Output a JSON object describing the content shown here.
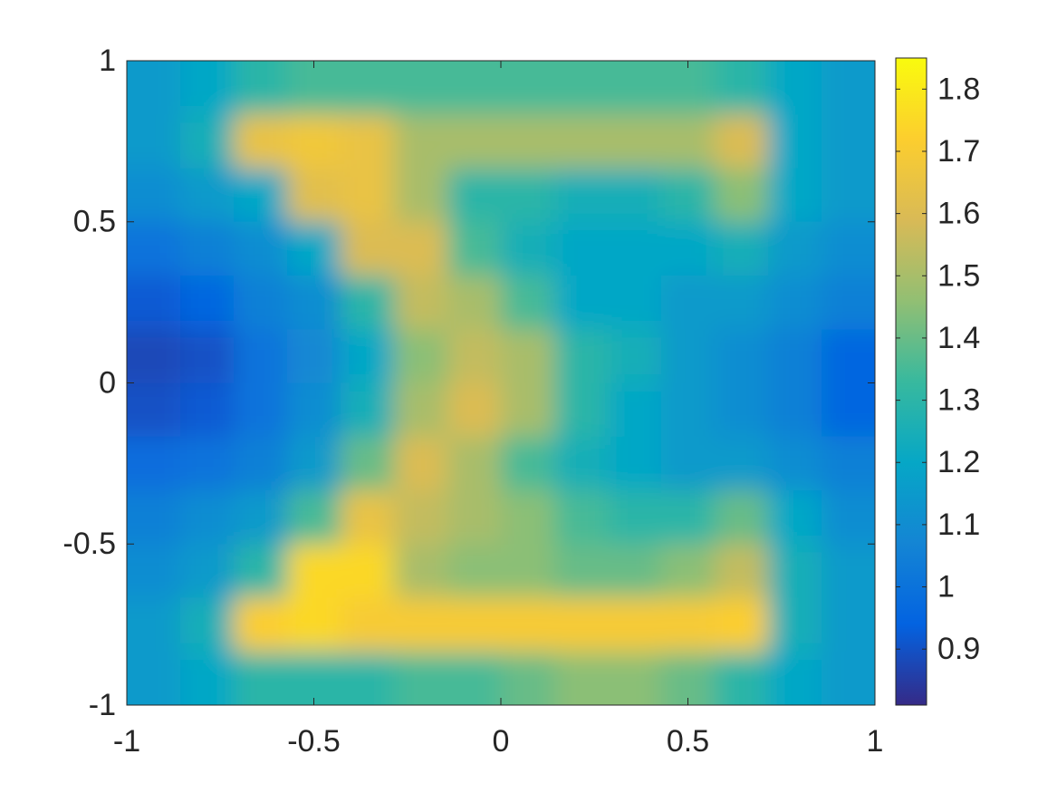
{
  "chart_data": {
    "type": "heatmap",
    "xlim": [
      -1,
      1
    ],
    "ylim": [
      -1,
      1
    ],
    "xticks": [
      -1,
      -0.5,
      0,
      0.5,
      1
    ],
    "yticks": [
      -1,
      -0.5,
      0,
      0.5,
      1
    ],
    "clim": [
      0.81,
      1.85
    ],
    "cticks": [
      0.9,
      1,
      1.1,
      1.2,
      1.3,
      1.4,
      1.5,
      1.6,
      1.7,
      1.8
    ],
    "colormap": [
      "#352a87",
      "#0363e1",
      "#1485d4",
      "#06a7c6",
      "#38b99e",
      "#92bf73",
      "#d9ba56",
      "#fcce2e",
      "#f9fb0e"
    ],
    "z": [
      [
        1.15,
        1.2,
        1.3,
        1.35,
        1.35,
        1.35,
        1.35,
        1.35,
        1.35,
        1.35,
        1.35,
        1.3,
        1.2,
        1.15
      ],
      [
        1.15,
        1.25,
        1.65,
        1.68,
        1.65,
        1.5,
        1.5,
        1.5,
        1.5,
        1.5,
        1.5,
        1.6,
        1.2,
        1.15
      ],
      [
        1.1,
        1.15,
        1.2,
        1.62,
        1.65,
        1.5,
        1.3,
        1.3,
        1.25,
        1.25,
        1.3,
        1.45,
        1.2,
        1.15
      ],
      [
        1.0,
        1.05,
        1.1,
        1.2,
        1.6,
        1.6,
        1.35,
        1.25,
        1.2,
        1.2,
        1.2,
        1.25,
        1.15,
        1.1
      ],
      [
        0.92,
        0.95,
        1.05,
        1.1,
        1.3,
        1.55,
        1.5,
        1.35,
        1.2,
        1.2,
        1.15,
        1.15,
        1.1,
        1.05
      ],
      [
        0.88,
        0.9,
        1.0,
        1.08,
        1.2,
        1.45,
        1.55,
        1.5,
        1.3,
        1.25,
        1.15,
        1.1,
        1.05,
        0.95
      ],
      [
        0.9,
        0.92,
        1.0,
        1.1,
        1.25,
        1.5,
        1.6,
        1.5,
        1.3,
        1.2,
        1.15,
        1.1,
        1.05,
        0.95
      ],
      [
        0.98,
        1.0,
        1.05,
        1.15,
        1.4,
        1.6,
        1.5,
        1.35,
        1.25,
        1.2,
        1.15,
        1.15,
        1.1,
        1.05
      ],
      [
        1.05,
        1.1,
        1.15,
        1.35,
        1.65,
        1.55,
        1.5,
        1.45,
        1.35,
        1.3,
        1.3,
        1.4,
        1.2,
        1.1
      ],
      [
        1.1,
        1.15,
        1.3,
        1.75,
        1.75,
        1.5,
        1.45,
        1.45,
        1.4,
        1.4,
        1.45,
        1.55,
        1.25,
        1.15
      ],
      [
        1.15,
        1.25,
        1.72,
        1.75,
        1.7,
        1.7,
        1.7,
        1.7,
        1.7,
        1.7,
        1.7,
        1.72,
        1.25,
        1.15
      ],
      [
        1.15,
        1.2,
        1.3,
        1.3,
        1.3,
        1.35,
        1.35,
        1.4,
        1.45,
        1.45,
        1.4,
        1.3,
        1.2,
        1.15
      ]
    ]
  }
}
